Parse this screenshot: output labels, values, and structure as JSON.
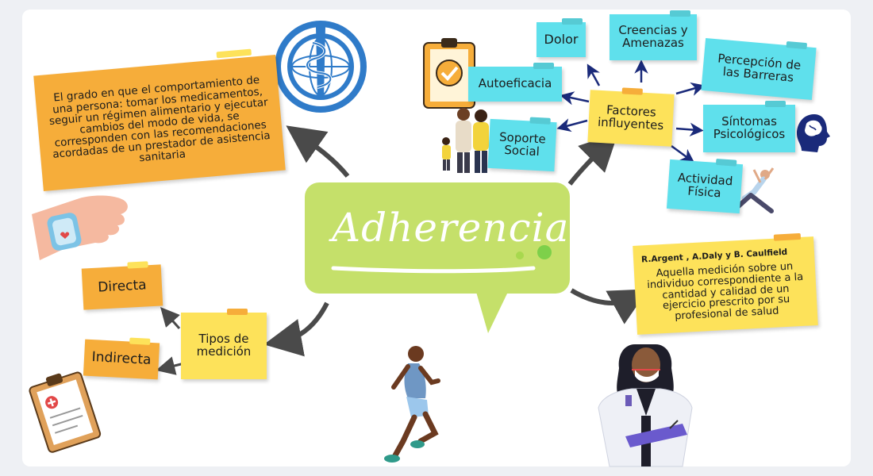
{
  "center": {
    "title": "Adherencia"
  },
  "definition": {
    "text": "El  grado  en que el comportamiento de una persona: tomar los medicamentos, seguir un régimen alimentario y ejecutar cambios del modo de vida, se corresponden  con las  recomendaciones acordadas de un prestador de asistencia sanitaria"
  },
  "factors": {
    "hub": "Factores influyentes",
    "items": [
      "Dolor",
      "Creencias y Amenazas",
      "Percepción de las Barreras",
      "Autoeficacia",
      "Soporte Social",
      "Síntomas Psicológicos",
      "Actividad Física"
    ]
  },
  "measurement": {
    "hub": "Tipos de medición",
    "items": [
      "Directa",
      "Indirecta"
    ]
  },
  "reference": {
    "authors": "R.Argent , A.Daly y B. Caulfield",
    "text": "Aquella medición sobre un individuo  correspondiente a la cantidad y calidad  de un ejercicio   prescrito por su profesional de salud"
  },
  "colors": {
    "cyan": "#5fe0ec",
    "orange": "#f6ad3a",
    "yellow": "#fde25a",
    "green": "#c5e06a",
    "arrow": "#4a4a4a",
    "navy": "#1a2a7a"
  }
}
